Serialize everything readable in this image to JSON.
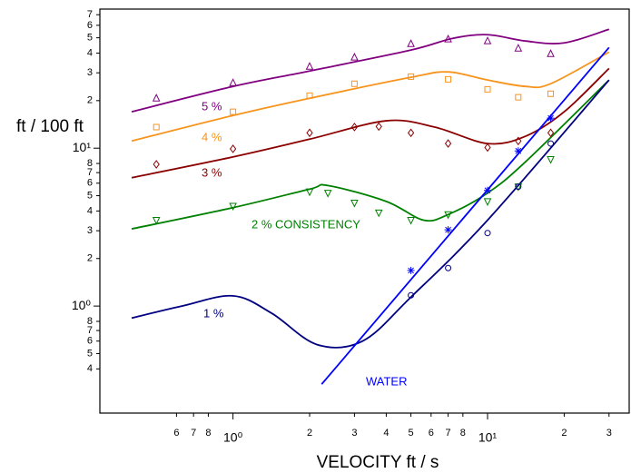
{
  "chart_data": {
    "type": "line",
    "x_label": "VELOCITY ft / s",
    "y_label": "ft / 100 ft",
    "x_log": true,
    "y_log": true,
    "xlim": [
      0.3,
      36
    ],
    "ylim": [
      0.21,
      76
    ],
    "xticks": [
      6,
      7,
      8,
      {
        "value": 1,
        "label": "10⁰"
      },
      2,
      3,
      4,
      5,
      6,
      7,
      8,
      {
        "value": 10,
        "label": "10¹"
      },
      2,
      3
    ],
    "xtick_values": [
      0.6,
      0.7,
      0.8,
      1,
      2,
      3,
      4,
      5,
      6,
      7,
      8,
      10,
      20,
      30
    ],
    "yticks": [
      4,
      5,
      6,
      7,
      8,
      {
        "value": 1,
        "label": "10⁰"
      },
      2,
      3,
      4,
      5,
      6,
      7,
      8,
      {
        "value": 10,
        "label": "10¹"
      },
      2,
      3,
      4,
      5,
      6,
      7
    ],
    "ytick_values": [
      0.4,
      0.5,
      0.6,
      0.7,
      0.8,
      1,
      2,
      3,
      4,
      5,
      6,
      7,
      8,
      10,
      20,
      30,
      40,
      50,
      60,
      70
    ],
    "series": [
      {
        "name": "5 %",
        "color": "#800080",
        "x": [
          0.4,
          1,
          2,
          5,
          7.3,
          10,
          14.1,
          20,
          30
        ],
        "values": [
          17.0,
          24.6,
          30.8,
          41.8,
          49.6,
          52.3,
          47.7,
          46.4,
          56.6
        ]
      },
      {
        "name": "4 %",
        "color": "#f7941d",
        "x": [
          0.4,
          1,
          2,
          5,
          7,
          10,
          14.1,
          17.7,
          30
        ],
        "values": [
          11.1,
          16.1,
          20.7,
          28.1,
          30.4,
          27.0,
          24.6,
          25.6,
          40.6
        ]
      },
      {
        "name": "3 %",
        "color": "#8b0000",
        "x": [
          0.4,
          1,
          2,
          4,
          6.2,
          10,
          14.1,
          20,
          30
        ],
        "values": [
          6.5,
          8.8,
          11.4,
          14.9,
          13.6,
          10.7,
          11.9,
          17.0,
          32
        ]
      },
      {
        "name": "2 % CONSISTENCY",
        "color": "#008000",
        "x": [
          0.4,
          1,
          2,
          2.36,
          4,
          5.6,
          7,
          10,
          14.1,
          30
        ],
        "values": [
          3.08,
          4.2,
          5.5,
          5.8,
          4.6,
          3.5,
          3.8,
          5.2,
          8.2,
          27
        ]
      },
      {
        "name": "1 %",
        "color": "#000080",
        "x": [
          0.4,
          0.63,
          1,
          1.42,
          2.14,
          3.23,
          5,
          10,
          30
        ],
        "values": [
          0.84,
          1.0,
          1.16,
          0.9,
          0.57,
          0.6,
          1.14,
          3.5,
          27
        ]
      },
      {
        "name": "WATER",
        "color": "#0000ff",
        "x": [
          2.23,
          30
        ],
        "values": [
          0.32,
          43.4
        ],
        "straight": true
      }
    ],
    "markers": [
      {
        "symbol": "triangle",
        "color": "#800080",
        "x": [
          0.5,
          1,
          2,
          3,
          5,
          7,
          10,
          13.2,
          17.7
        ],
        "values": [
          20.7,
          25.9,
          32.9,
          37.6,
          45.8,
          49,
          47.7,
          42.9,
          39.6
        ]
      },
      {
        "symbol": "square",
        "color": "#f7941d",
        "x": [
          0.5,
          1,
          2,
          3,
          5,
          7,
          10,
          13.2,
          17.7
        ],
        "values": [
          13.6,
          17.0,
          21.5,
          25.6,
          28.4,
          27.3,
          23.6,
          21.0,
          22.1
        ]
      },
      {
        "symbol": "diamond",
        "color": "#8b0000",
        "x": [
          0.5,
          1,
          2,
          3,
          3.74,
          5,
          7,
          10,
          13.2,
          17.7
        ],
        "values": [
          7.9,
          9.9,
          12.5,
          13.6,
          13.7,
          12.5,
          10.7,
          10.1,
          11.1,
          12.5
        ]
      },
      {
        "symbol": "down-triangle",
        "color": "#008000",
        "x": [
          0.5,
          1,
          2,
          2.36,
          3,
          3.74,
          5,
          7,
          10,
          13.2,
          17.7
        ],
        "values": [
          3.5,
          4.3,
          5.3,
          5.2,
          4.5,
          3.9,
          3.5,
          3.8,
          4.6,
          5.7,
          8.5
        ]
      },
      {
        "symbol": "circle",
        "color": "#000080",
        "x": [
          5,
          7,
          10,
          13.2,
          17.7
        ],
        "values": [
          1.17,
          1.74,
          2.9,
          5.7,
          10.7
        ]
      },
      {
        "symbol": "asterisk",
        "color": "#0000ff",
        "x": [
          5,
          7,
          10,
          13.2,
          17.7
        ],
        "values": [
          1.68,
          3.04,
          5.4,
          9.6,
          15.5
        ]
      }
    ]
  }
}
